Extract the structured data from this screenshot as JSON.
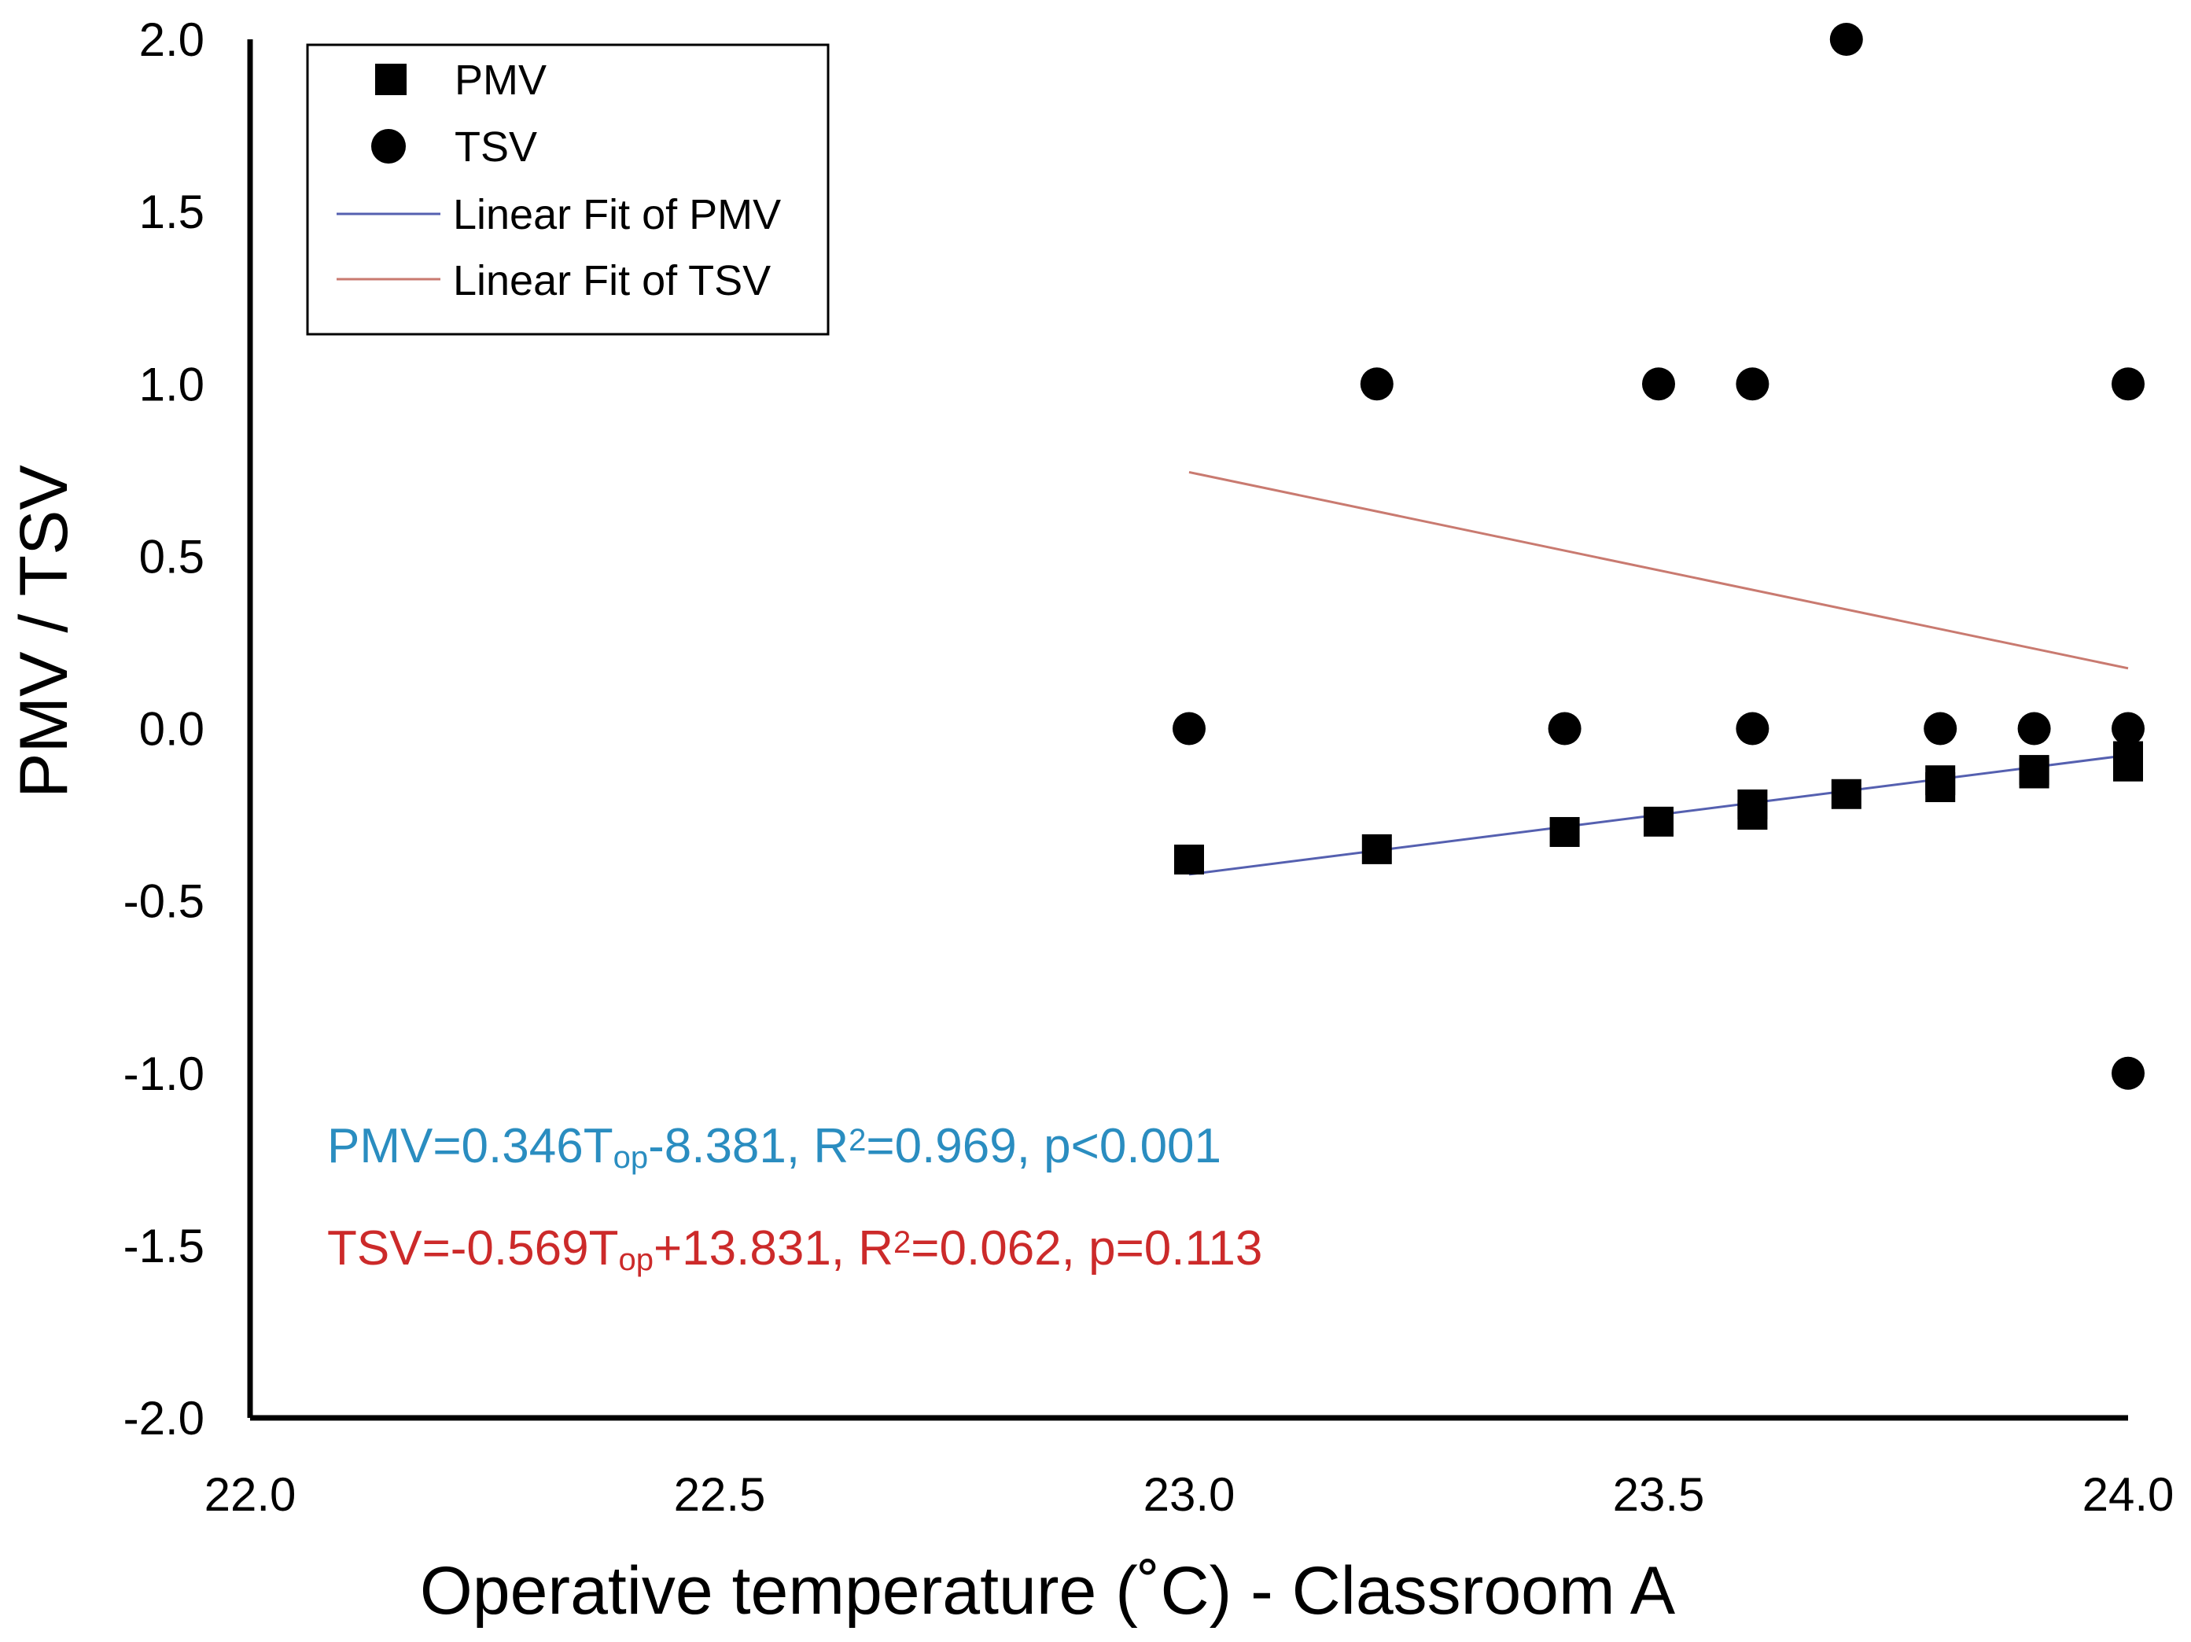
{
  "chart_data": {
    "type": "scatter",
    "xlabel": "Operative temperature (˚C) - Classroom A",
    "ylabel": "PMV / TSV",
    "xlim": [
      22.0,
      24.0
    ],
    "ylim": [
      -2.0,
      2.0
    ],
    "x_ticks": [
      "22.0",
      "22.5",
      "23.0",
      "23.5",
      "24.0"
    ],
    "y_ticks": [
      "2.0",
      "1.5",
      "1.0",
      "0.5",
      "0.0",
      "-0.5",
      "-1.0",
      "-1.5",
      "-2.0"
    ],
    "grid": false,
    "legend_position": "top-left",
    "legend": [
      {
        "label": "PMV",
        "marker": "square"
      },
      {
        "label": "TSV",
        "marker": "circle"
      },
      {
        "label": "Linear Fit of PMV",
        "marker": "line",
        "color": "#5560b0"
      },
      {
        "label": "Linear Fit of TSV",
        "marker": "line",
        "color": "#c97a70"
      }
    ],
    "series": [
      {
        "name": "PMV",
        "marker": "square",
        "color": "#000000",
        "x": [
          23.0,
          23.2,
          23.4,
          23.5,
          23.6,
          23.6,
          23.7,
          23.8,
          23.8,
          23.9,
          23.9,
          24.0,
          24.0
        ],
        "y": [
          -0.38,
          -0.35,
          -0.3,
          -0.27,
          -0.22,
          -0.25,
          -0.19,
          -0.15,
          -0.17,
          -0.12,
          -0.13,
          -0.08,
          -0.11
        ]
      },
      {
        "name": "TSV",
        "marker": "circle",
        "color": "#000000",
        "x": [
          23.0,
          23.2,
          23.4,
          23.5,
          23.6,
          23.6,
          23.7,
          23.8,
          23.9,
          24.0,
          24.0,
          24.0
        ],
        "y": [
          0,
          1,
          0,
          1,
          1,
          0,
          2,
          0,
          0,
          1,
          0,
          -1
        ]
      }
    ],
    "fits": [
      {
        "name": "Linear Fit of PMV",
        "color": "#5560b0",
        "x": [
          23.0,
          24.0
        ],
        "y": [
          -0.423,
          -0.077
        ]
      },
      {
        "name": "Linear Fit of TSV",
        "color": "#c97a70",
        "x": [
          23.0,
          24.0
        ],
        "y": [
          0.744,
          0.175
        ]
      }
    ],
    "annotations": [
      {
        "color": "#2a8dc0",
        "parts": [
          {
            "t": "PMV=0.346T"
          },
          {
            "t": "op",
            "sub": true
          },
          {
            "t": "-8.381, R"
          },
          {
            "t": "2",
            "sup": true
          },
          {
            "t": "=0.969,  p<0.001"
          }
        ]
      },
      {
        "color": "#cc2a2a",
        "parts": [
          {
            "t": "TSV=-0.569T"
          },
          {
            "t": "op",
            "sub": true
          },
          {
            "t": "+13.831, R"
          },
          {
            "t": "2",
            "sup": true
          },
          {
            "t": "=0.062, p=0.113"
          }
        ]
      }
    ]
  }
}
